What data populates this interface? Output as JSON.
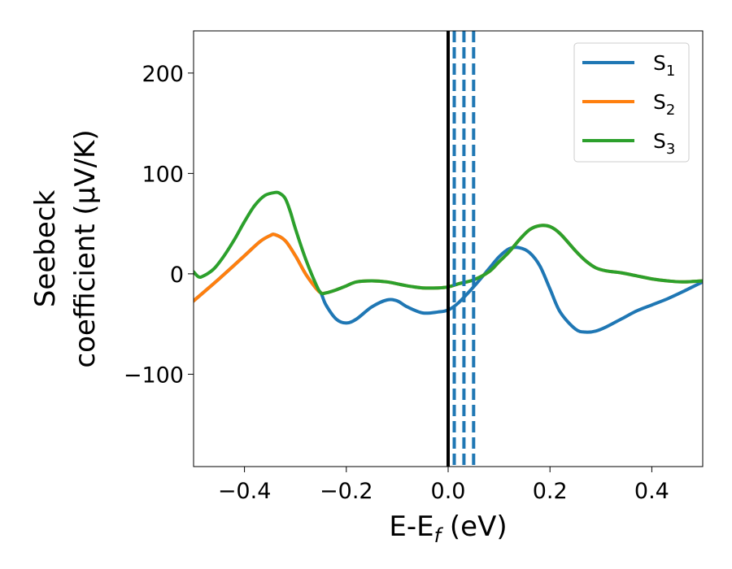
{
  "chart_data": {
    "type": "line",
    "xlabel": {
      "base": "E-E",
      "sub": "f",
      "suffix": " (eV)"
    },
    "ylabel": {
      "line1": "Seebeck",
      "line2": "coefficient  (μV/K)"
    },
    "xlim": [
      -0.5,
      0.5
    ],
    "ylim": [
      -192,
      242
    ],
    "x_ticks": [
      -0.4,
      -0.2,
      0.0,
      0.2,
      0.4
    ],
    "x_tick_labels": [
      "−0.4",
      "−0.2",
      "0.0",
      "0.2",
      "0.4"
    ],
    "y_ticks": [
      -100,
      0,
      100,
      200
    ],
    "y_tick_labels": [
      "−100",
      "0",
      "100",
      "200"
    ],
    "grid": false,
    "legend_position": "top-right",
    "vlines": [
      {
        "x": 0.0,
        "color": "#000000",
        "style": "solid"
      },
      {
        "x": 0.012,
        "color": "#1f77b4",
        "style": "dashed"
      },
      {
        "x": 0.031,
        "color": "#1f77b4",
        "style": "dashed"
      },
      {
        "x": 0.05,
        "color": "#1f77b4",
        "style": "dashed"
      }
    ],
    "series": [
      {
        "name": "S",
        "sub": "1",
        "color": "#1f77b4",
        "x": [
          -0.5,
          -0.45,
          -0.4,
          -0.37,
          -0.35,
          -0.34,
          -0.32,
          -0.3,
          -0.28,
          -0.26,
          -0.25,
          -0.24,
          -0.22,
          -0.2,
          -0.18,
          -0.15,
          -0.12,
          -0.1,
          -0.08,
          -0.05,
          -0.02,
          0.0,
          0.02,
          0.05,
          0.08,
          0.1,
          0.12,
          0.14,
          0.16,
          0.18,
          0.2,
          0.22,
          0.25,
          0.27,
          0.29,
          0.31,
          0.34,
          0.37,
          0.4,
          0.43,
          0.46,
          0.5
        ],
        "y": [
          -27,
          -5,
          18,
          32,
          38,
          39,
          33,
          18,
          0,
          -14,
          -19,
          -31,
          -45,
          -49,
          -45,
          -33,
          -26,
          -27,
          -33,
          -39,
          -38,
          -36,
          -29,
          -13,
          5,
          17,
          25,
          26,
          21,
          8,
          -15,
          -38,
          -55,
          -58,
          -57,
          -53,
          -45,
          -37,
          -31,
          -25,
          -18,
          -8
        ]
      },
      {
        "name": "S",
        "sub": "2",
        "color": "#ff7f0e",
        "x": [
          -0.5,
          -0.45,
          -0.4,
          -0.37,
          -0.35,
          -0.34,
          -0.32,
          -0.3,
          -0.28,
          -0.26,
          -0.25,
          -0.24,
          -0.22,
          -0.2,
          -0.18,
          -0.15,
          -0.12,
          -0.1,
          -0.08,
          -0.05,
          -0.02,
          0.0,
          0.02,
          0.05,
          0.08,
          0.1,
          0.12,
          0.14,
          0.16,
          0.18,
          0.2,
          0.22,
          0.25,
          0.27,
          0.29,
          0.31,
          0.34,
          0.37,
          0.4,
          0.43,
          0.46,
          0.5
        ],
        "y": [
          -27,
          -5,
          18,
          32,
          38,
          39,
          33,
          18,
          0,
          -14,
          -19,
          -19,
          -16,
          -12,
          -8,
          -7,
          -8,
          -10,
          -12,
          -14,
          -14,
          -13,
          -10,
          -6,
          2,
          12,
          22,
          34,
          44,
          48,
          47,
          40,
          23,
          13,
          6,
          3,
          1,
          -2,
          -5,
          -7,
          -8,
          -7
        ]
      },
      {
        "name": "S",
        "sub": "3",
        "color": "#2ca02c",
        "x": [
          -0.5,
          -0.49,
          -0.48,
          -0.46,
          -0.44,
          -0.42,
          -0.4,
          -0.38,
          -0.36,
          -0.34,
          -0.33,
          -0.32,
          -0.31,
          -0.3,
          -0.28,
          -0.26,
          -0.25,
          -0.24,
          -0.22,
          -0.2,
          -0.18,
          -0.15,
          -0.12,
          -0.1,
          -0.08,
          -0.05,
          -0.02,
          0.0,
          0.02,
          0.05,
          0.08,
          0.1,
          0.12,
          0.14,
          0.16,
          0.18,
          0.2,
          0.22,
          0.25,
          0.27,
          0.29,
          0.31,
          0.34,
          0.37,
          0.4,
          0.43,
          0.46,
          0.5
        ],
        "y": [
          2,
          -3,
          -2,
          5,
          18,
          34,
          52,
          68,
          78,
          81,
          80,
          75,
          62,
          45,
          15,
          -10,
          -19,
          -19,
          -16,
          -12,
          -8,
          -7,
          -8,
          -10,
          -12,
          -14,
          -14,
          -13,
          -10,
          -6,
          2,
          12,
          22,
          34,
          44,
          48,
          47,
          40,
          23,
          13,
          6,
          3,
          1,
          -2,
          -5,
          -7,
          -8,
          -7
        ]
      }
    ]
  }
}
